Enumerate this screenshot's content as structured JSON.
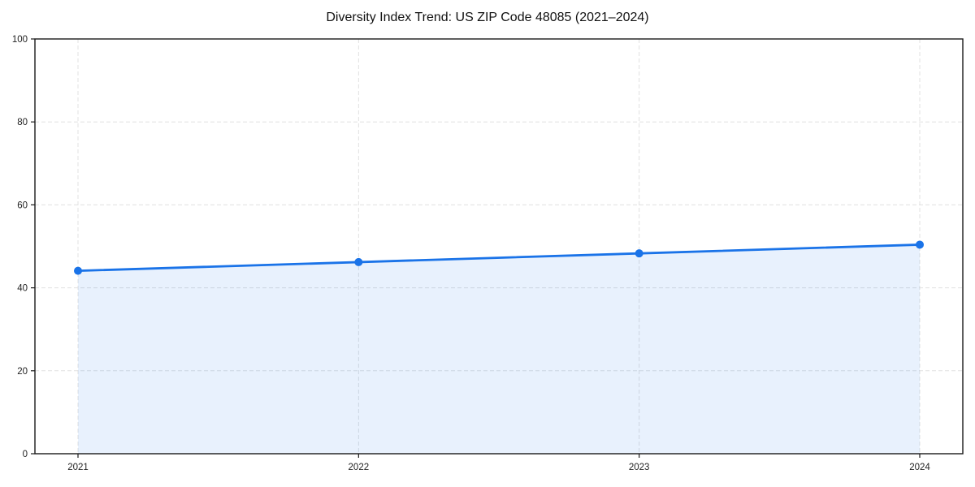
{
  "chart_data": {
    "type": "area",
    "title": "Diversity Index Trend: US ZIP Code 48085 (2021–2024)",
    "categories": [
      "2021",
      "2022",
      "2023",
      "2024"
    ],
    "series": [
      {
        "name": "Diversity Index",
        "values": [
          44.1,
          46.2,
          48.3,
          50.4
        ]
      }
    ],
    "xlabel": "",
    "ylabel": "",
    "ylim": [
      0,
      100
    ],
    "yticks": [
      0,
      20,
      40,
      60,
      80,
      100
    ],
    "grid": true,
    "grid_style": "dashed",
    "legend": false,
    "colors": {
      "line": "#1a73e8",
      "fill": "#e9f1fd",
      "fill_opacity": 0.1,
      "grid": "#e0e0e0",
      "spine": "#1a1a1a",
      "tick_label": "#222222",
      "background": "#ffffff"
    }
  }
}
